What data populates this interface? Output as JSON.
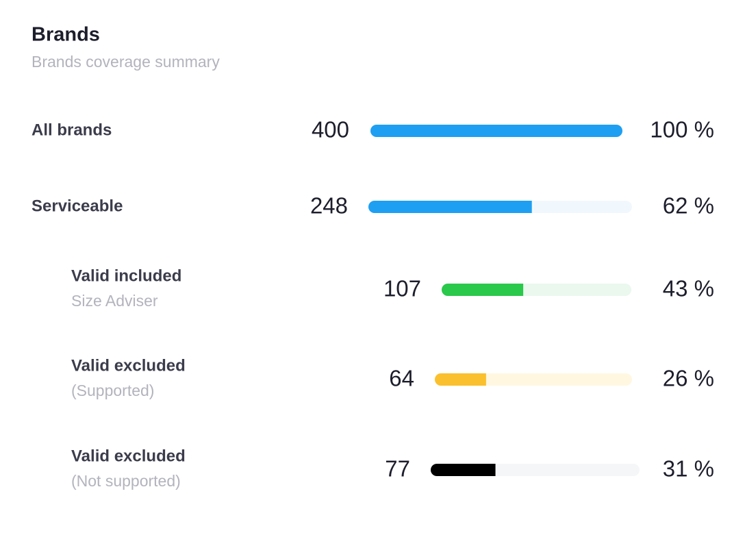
{
  "header": {
    "title": "Brands",
    "subtitle": "Brands coverage summary"
  },
  "rows": [
    {
      "label": "All brands",
      "count": 400,
      "percent": {
        "value": 100,
        "label": "100 %"
      },
      "color": "#1e9ff2",
      "track": "#eef6fd"
    },
    {
      "label": "Serviceable",
      "count": 248,
      "percent": {
        "value": 62,
        "label": "62 %"
      },
      "color": "#1e9ff2",
      "track": "#f1f8fd"
    },
    {
      "label": "Valid included",
      "sublabel": "Size Adviser",
      "count": 107,
      "percent": {
        "value": 43,
        "label": "43 %"
      },
      "color": "#2ac84b",
      "track": "#eaf8ee"
    },
    {
      "label": "Valid excluded",
      "sublabel": "(Supported)",
      "count": 64,
      "percent": {
        "value": 26,
        "label": "26 %"
      },
      "color": "#fbc02d",
      "track": "#fff7e0"
    },
    {
      "label": "Valid excluded",
      "sublabel": "(Not supported)",
      "count": 77,
      "percent": {
        "value": 31,
        "label": "31 %"
      },
      "color": "#000000",
      "track": "#f5f6f8"
    }
  ]
}
